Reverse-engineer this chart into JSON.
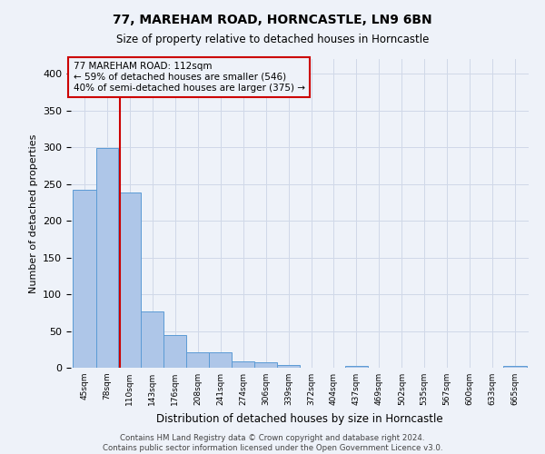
{
  "title_line1": "77, MAREHAM ROAD, HORNCASTLE, LN9 6BN",
  "title_line2": "Size of property relative to detached houses in Horncastle",
  "xlabel": "Distribution of detached houses by size in Horncastle",
  "ylabel": "Number of detached properties",
  "footer_line1": "Contains HM Land Registry data © Crown copyright and database right 2024.",
  "footer_line2": "Contains public sector information licensed under the Open Government Licence v3.0.",
  "bar_edges": [
    45,
    78,
    110,
    143,
    176,
    208,
    241,
    274,
    306,
    339,
    372,
    404,
    437,
    469,
    502,
    535,
    567,
    600,
    633,
    665,
    698
  ],
  "bar_heights": [
    242,
    299,
    238,
    76,
    45,
    21,
    21,
    9,
    7,
    4,
    0,
    0,
    3,
    0,
    0,
    0,
    0,
    0,
    0,
    3
  ],
  "bar_color": "#aec6e8",
  "bar_edge_color": "#5b9bd5",
  "property_size": 112,
  "property_label": "77 MAREHAM ROAD: 112sqm",
  "annotation_line2": "← 59% of detached houses are smaller (546)",
  "annotation_line3": "40% of semi-detached houses are larger (375) →",
  "vline_color": "#cc0000",
  "annotation_box_edge_color": "#cc0000",
  "ylim": [
    0,
    420
  ],
  "yticks": [
    0,
    50,
    100,
    150,
    200,
    250,
    300,
    350,
    400
  ],
  "grid_color": "#d0d8e8",
  "bg_color": "#eef2f9"
}
